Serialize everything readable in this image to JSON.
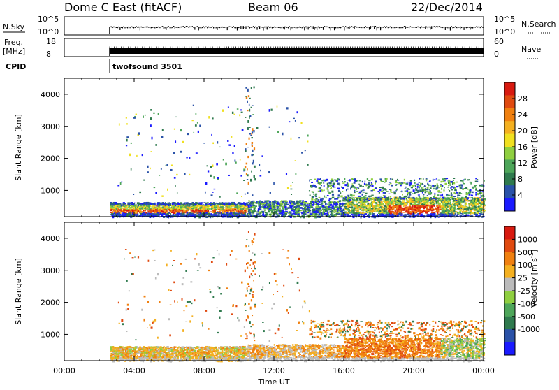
{
  "header": {
    "site": "Dome C East (fitACF)",
    "beam": "Beam 06",
    "date": "22/Dec/2014"
  },
  "top_panels": {
    "nsky_label": "N.Sky",
    "nsearch_label": "N.Search",
    "noise_ticks": [
      "10^5",
      "10^0"
    ],
    "noise_right_ticks": [
      "10^5",
      "10^0"
    ],
    "freq_label_1": "Freq.",
    "freq_label_2": "[MHz]",
    "freq_ticks": [
      "18",
      "8"
    ],
    "nave_label": "Nave",
    "nave_ticks": [
      "60",
      "0"
    ],
    "cpid_label": "CPID",
    "cpid_value": "twofsound 3501"
  },
  "chart_data": [
    {
      "type": "heatmap",
      "name": "power",
      "xlabel": "",
      "ylabel": "Slant Range [km]",
      "x_range_hours": [
        0,
        24
      ],
      "ylim": [
        180,
        4500
      ],
      "y_ticks": [
        "1000",
        "2000",
        "3000",
        "4000"
      ],
      "colorbar": {
        "label": "Power [dB]",
        "ticks": [
          "4",
          "8",
          "12",
          "16",
          "20",
          "24",
          "28"
        ],
        "colors": [
          "#1a1aff",
          "#2a52a8",
          "#2f7a4e",
          "#4ea65a",
          "#8fcf40",
          "#f0e020",
          "#f4b020",
          "#f08010",
          "#e04a10",
          "#d81a10"
        ]
      }
    },
    {
      "type": "heatmap",
      "name": "velocity",
      "xlabel": "Time UT",
      "ylabel": "Slant Range [km]",
      "x_range_hours": [
        0,
        24
      ],
      "x_ticks": [
        "00:00",
        "04:00",
        "08:00",
        "12:00",
        "16:00",
        "20:00",
        "00:00"
      ],
      "ylim": [
        180,
        4500
      ],
      "y_ticks": [
        "1000",
        "2000",
        "3000",
        "4000"
      ],
      "colorbar": {
        "label": "Velocity [m s^-1]",
        "ticks": [
          "1000",
          "500",
          "100",
          "25",
          "-25",
          "-100",
          "-500",
          "-1000"
        ],
        "colors": [
          "#1a1aff",
          "#2a52a8",
          "#2f7a4e",
          "#4ea65a",
          "#8fcf40",
          "#bbbbbb",
          "#f4b020",
          "#f08010",
          "#e04a10",
          "#d81a10"
        ]
      }
    }
  ]
}
